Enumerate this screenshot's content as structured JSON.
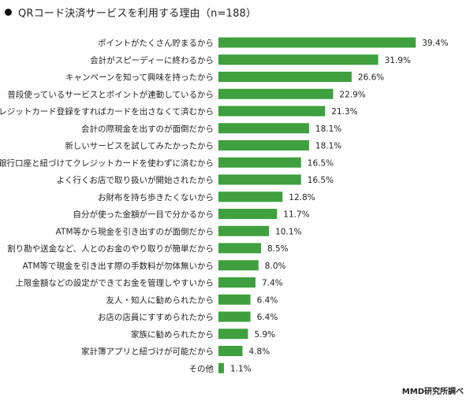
{
  "chart_data": {
    "type": "bar",
    "orientation": "horizontal",
    "title": "QRコード決済サービスを利用する理由（n=188）",
    "source": "MMD研究所調べ",
    "bar_color": "#3ea03e",
    "xlim": [
      0,
      40
    ],
    "grid": false,
    "legend": "none",
    "categories": [
      "ポイントがたくさん貯まるから",
      "会計がスピーディーに終わるから",
      "キャンペーンを知って興味を持ったから",
      "普段使っているサービスとポイントが連動しているから",
      "クレジットカード登録をすればカードを出さなくて済むから",
      "会計の際現金を出すのが面倒だから",
      "新しいサービスを試してみたかったから",
      "銀行口座と紐づけてクレジットカードを使わずに済むから",
      "よく行くお店で取り扱いが開始されたから",
      "お財布を持ち歩きたくないから",
      "自分が使った金額が一目で分かるから",
      "ATM等から現金を引き出すのが面倒だから",
      "割り勘や送金など、人とのお金のやり取りが簡単だから",
      "ATM等で現金を引き出す際の手数料が勿体無いから",
      "上限金額などの設定ができてお金を管理しやすいから",
      "友人・知人に勧められたから",
      "お店の店員にすすめられたから",
      "家族に勧められたから",
      "家計簿アプリと紐づけが可能だから",
      "その他"
    ],
    "values": [
      39.4,
      31.9,
      26.6,
      22.9,
      21.3,
      18.1,
      18.1,
      16.5,
      16.5,
      12.8,
      11.7,
      10.1,
      8.5,
      8.0,
      7.4,
      6.4,
      6.4,
      5.9,
      4.8,
      1.1
    ],
    "value_labels": [
      "39.4%",
      "31.9%",
      "26.6%",
      "22.9%",
      "21.3%",
      "18.1%",
      "18.1%",
      "16.5%",
      "16.5%",
      "12.8%",
      "11.7%",
      "10.1%",
      "8.5%",
      "8.0%",
      "7.4%",
      "6.4%",
      "6.4%",
      "5.9%",
      "4.8%",
      "1.1%"
    ]
  }
}
